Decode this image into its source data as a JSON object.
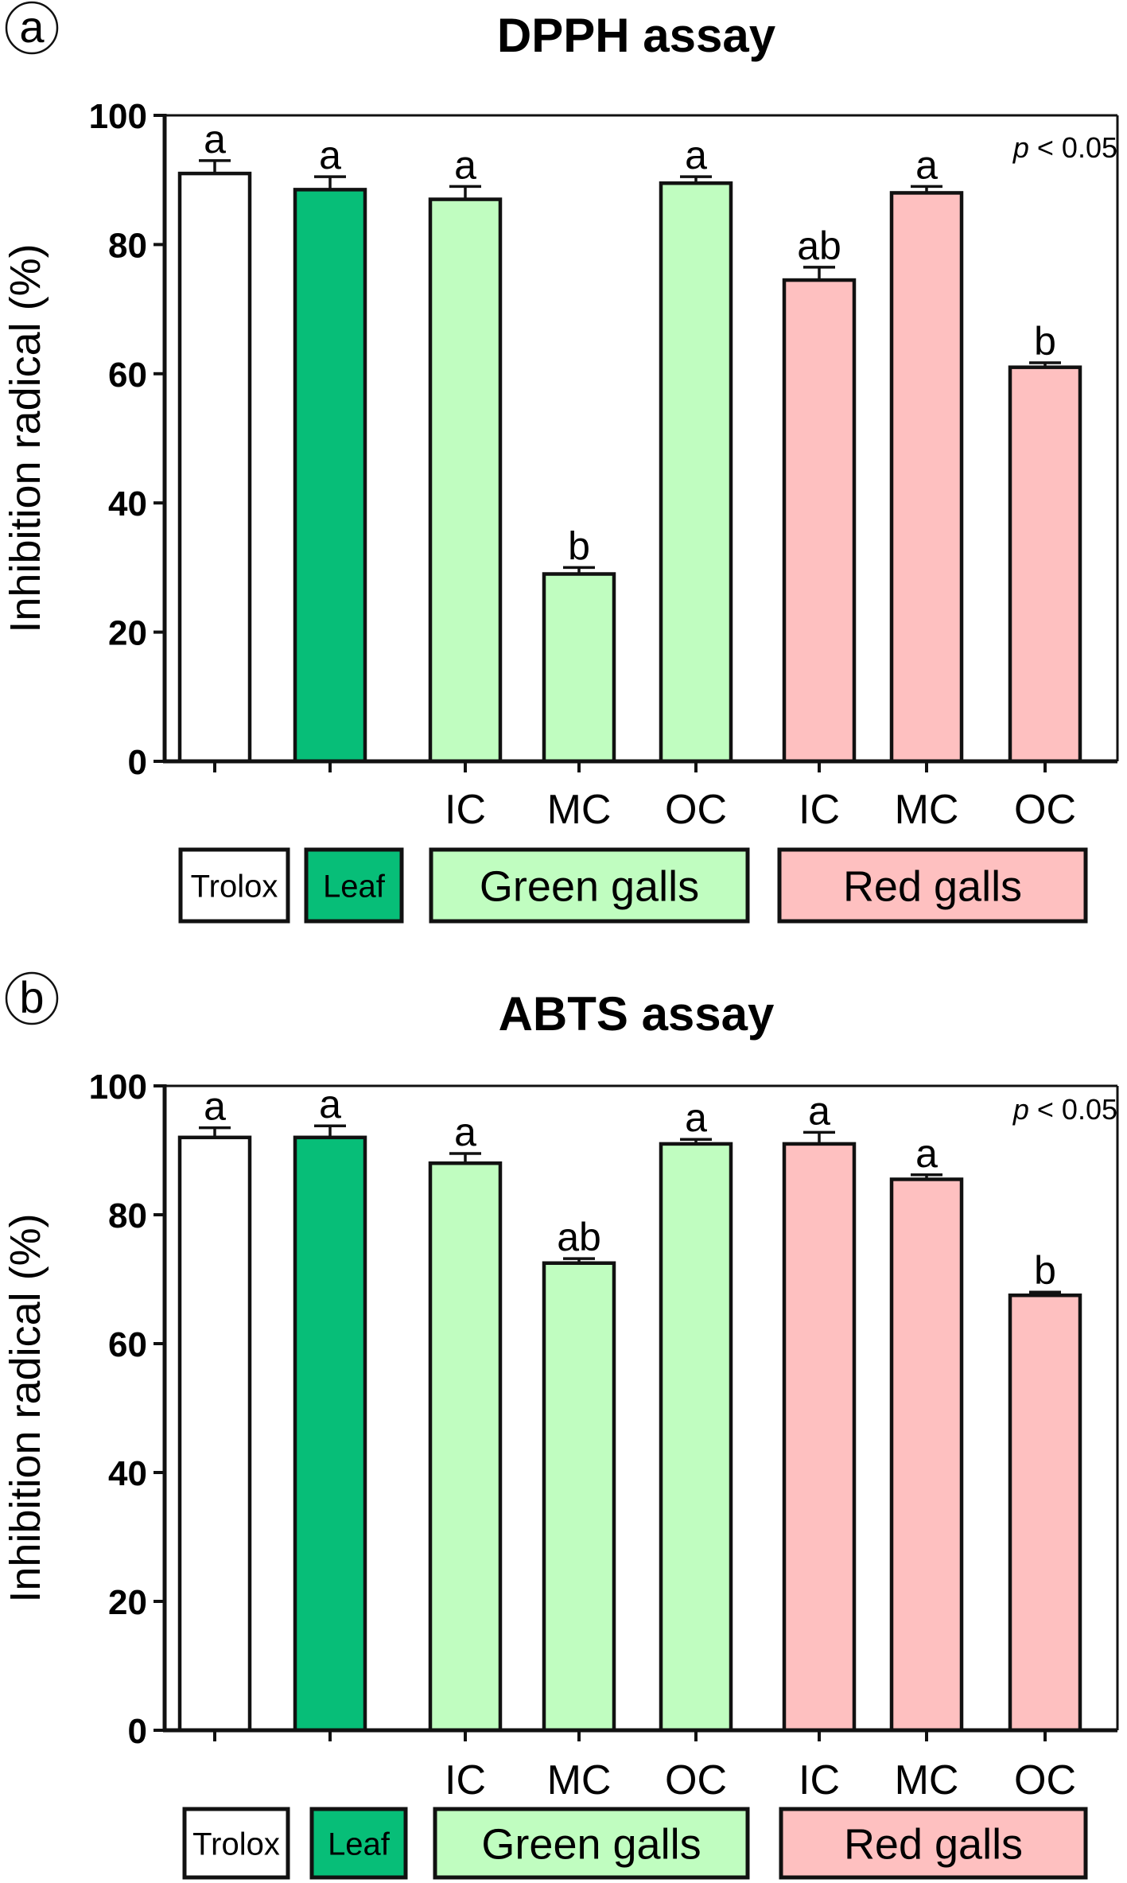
{
  "chart_data": [
    {
      "type": "bar",
      "panel_label": "a",
      "title": "DPPH assay",
      "ylabel": "Inhibition radical (%)",
      "ylim": [
        0,
        100
      ],
      "yticks": [
        "0",
        "20",
        "40",
        "60",
        "80",
        "100"
      ],
      "annotation": {
        "italic": "p",
        "rest": " < 0.05"
      },
      "categories": [
        "",
        "",
        "IC",
        "MC",
        "OC",
        "IC",
        "MC",
        "OC"
      ],
      "values": [
        91,
        88.5,
        87,
        29,
        89.5,
        74.5,
        88,
        61
      ],
      "errors": [
        2,
        2,
        2,
        1,
        1,
        2,
        1,
        0.7
      ],
      "significance": [
        "a",
        "a",
        "a",
        "b",
        "a",
        "ab",
        "a",
        "b"
      ],
      "colors": [
        "#ffffff",
        "#07be78",
        "#c0fdc0",
        "#c0fdc0",
        "#c0fdc0",
        "#fec0c0",
        "#fec0c0",
        "#fec0c0"
      ],
      "legend": [
        {
          "label": "Trolox",
          "color": "#ffffff",
          "size": "small"
        },
        {
          "label": "Leaf",
          "color": "#07be78",
          "size": "small"
        },
        {
          "label": "Green galls",
          "color": "#c0fdc0",
          "size": "large"
        },
        {
          "label": "Red galls",
          "color": "#fec0c0",
          "size": "large"
        }
      ]
    },
    {
      "type": "bar",
      "panel_label": "b",
      "title": "ABTS assay",
      "ylabel": "Inhibition radical (%)",
      "ylim": [
        0,
        100
      ],
      "yticks": [
        "0",
        "20",
        "40",
        "60",
        "80",
        "100"
      ],
      "annotation": {
        "italic": "p",
        "rest": " < 0.05"
      },
      "categories": [
        "",
        "",
        "IC",
        "MC",
        "OC",
        "IC",
        "MC",
        "OC"
      ],
      "values": [
        92,
        92,
        88,
        72.5,
        91,
        91,
        85.5,
        67.5
      ],
      "errors": [
        1.5,
        1.8,
        1.5,
        0.7,
        0.7,
        1.8,
        0.7,
        0.5
      ],
      "significance": [
        "a",
        "a",
        "a",
        "ab",
        "a",
        "a",
        "a",
        "b"
      ],
      "colors": [
        "#ffffff",
        "#07be78",
        "#c0fdc0",
        "#c0fdc0",
        "#c0fdc0",
        "#fec0c0",
        "#fec0c0",
        "#fec0c0"
      ],
      "legend": [
        {
          "label": "Trolox",
          "color": "#ffffff",
          "size": "small"
        },
        {
          "label": "Leaf",
          "color": "#07be78",
          "size": "small"
        },
        {
          "label": "Green galls",
          "color": "#c0fdc0",
          "size": "large"
        },
        {
          "label": "Red galls",
          "color": "#fec0c0",
          "size": "large"
        }
      ]
    }
  ]
}
